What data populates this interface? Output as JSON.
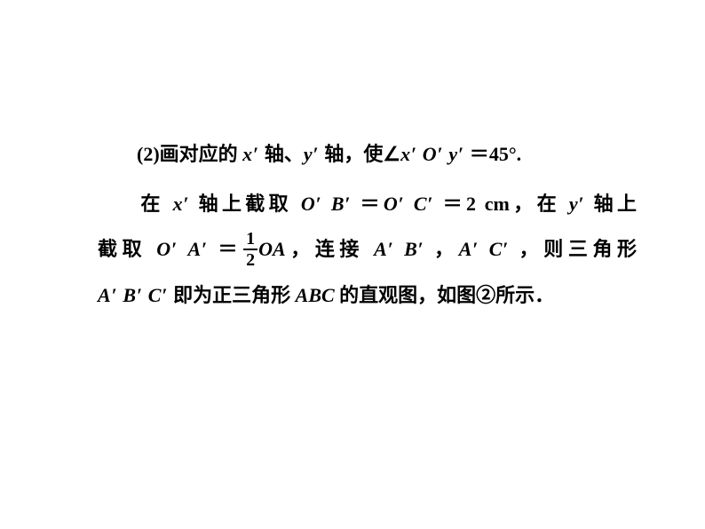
{
  "typography": {
    "font_size_pt": 17,
    "line_height": 2.35,
    "font_weight": "bold",
    "text_color": "#000000",
    "background_color": "#ffffff",
    "cjk_font": "SimSun",
    "latin_font": "Times New Roman"
  },
  "paragraph1": {
    "p2_label": "(2)",
    "t1": "画对应的 ",
    "x": "x",
    "pr1": "′",
    "t2": " 轴、",
    "y": "y",
    "pr2": "′",
    "t3": " 轴，使",
    "angle": "∠",
    "x2": "x",
    "pr3": "′",
    "sp1": " ",
    "O": "O",
    "pr4": "′",
    "sp2": " ",
    "y2": "y",
    "pr5": "′",
    "sp3": " ",
    "eq": "＝",
    "deg": "45°."
  },
  "paragraph2": {
    "l1_a": "在 ",
    "x": "x",
    "pr1": "′",
    "l1_b": " 轴上截取 ",
    "O1": "O",
    "pr2": "′",
    "sp1": " ",
    "B1": "B",
    "pr3": "′",
    "sp2": " ",
    "eq1": "＝",
    "O2": "O",
    "pr4": "′",
    "sp3": " ",
    "C1": "C",
    "pr5": "′",
    "sp4": " ",
    "eq2": "＝",
    "len": "2 cm",
    "l1_c": "，在 ",
    "y": "y",
    "pr6": "′",
    "l1_d": " 轴上",
    "l2_a": "截取 ",
    "O3": "O",
    "pr7": "′",
    "sp5": " ",
    "A1": "A",
    "pr8": "′",
    "sp6": " ",
    "eq3": "＝",
    "frac_num": "1",
    "frac_den": "2",
    "OA": "OA",
    "l2_b": "，连接 ",
    "A2": "A",
    "pr9": "′",
    "sp7": " ",
    "B2": "B",
    "pr10": "′",
    "sp8": " ",
    "comma1": "，",
    "A3": "A",
    "pr11": "′",
    "sp9": " ",
    "C2": "C",
    "pr12": "′",
    "sp10": " ",
    "l2_c": "，则三角形",
    "A4": "A",
    "pr13": "′",
    "sp11": " ",
    "B3": "B",
    "pr14": "′",
    "sp12": " ",
    "C3": "C",
    "pr15": "′",
    "l3_a": " 即为正三角形 ",
    "ABC": "ABC",
    "l3_b": " 的直观图，如图②所示．"
  }
}
